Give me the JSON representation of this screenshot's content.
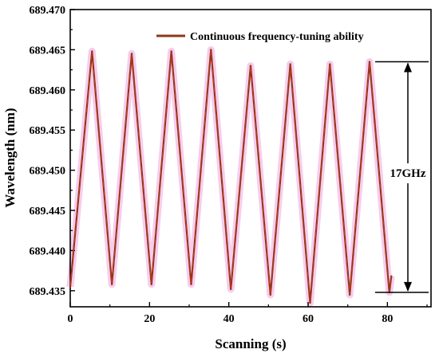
{
  "chart_data": {
    "type": "line",
    "xlabel": "Scanning (s)",
    "ylabel": "Wavelength (nm)",
    "xlim": [
      0,
      91
    ],
    "ylim": [
      689.433,
      689.47
    ],
    "xticks": [
      0,
      20,
      40,
      60,
      80
    ],
    "xtick_labels": [
      "0",
      "20",
      "40",
      "60",
      "80"
    ],
    "yticks": [
      689.435,
      689.44,
      689.445,
      689.45,
      689.455,
      689.46,
      689.465,
      689.47
    ],
    "ytick_labels": [
      "689.435",
      "689.440",
      "689.445",
      "689.450",
      "689.455",
      "689.460",
      "689.465",
      "689.470"
    ],
    "grid": false,
    "legend_position": "top",
    "series": [
      {
        "name": "Continuous frequency-tuning ability",
        "color": "#8b3a1a",
        "x": [
          0,
          5.5,
          10.5,
          15.5,
          20.5,
          25.5,
          30.5,
          35.5,
          40.5,
          45.5,
          50.5,
          55.5,
          60.5,
          65.5,
          70.5,
          75.5,
          80.5,
          81
        ],
        "y": [
          689.4355,
          689.4648,
          689.4358,
          689.4645,
          689.4358,
          689.4648,
          689.4358,
          689.465,
          689.4352,
          689.463,
          689.4345,
          689.4632,
          689.4335,
          689.4632,
          689.4345,
          689.4635,
          689.4348,
          689.4368
        ]
      }
    ],
    "annotation": {
      "label": "17GHz",
      "top": 689.4635,
      "bottom": 689.4348
    }
  }
}
